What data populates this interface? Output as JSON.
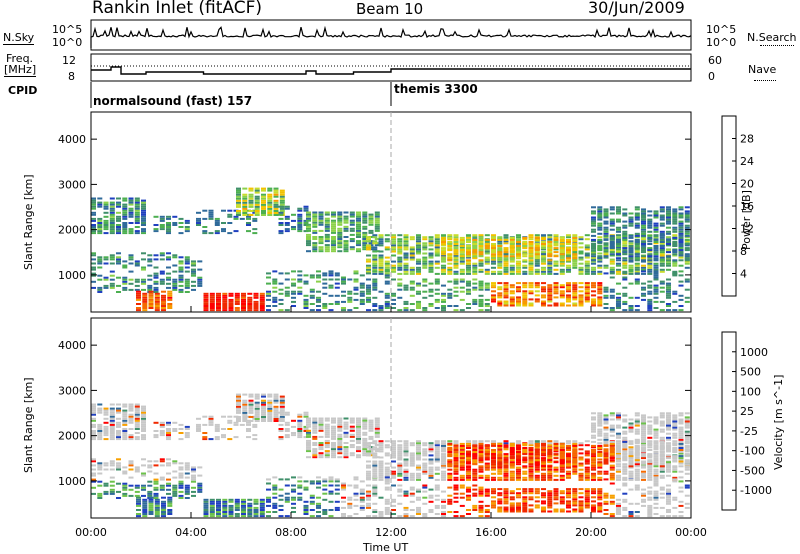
{
  "header": {
    "station": "Rankin Inlet (fitACF)",
    "beam": "Beam 10",
    "date": "30/Jun/2009"
  },
  "nsky_panel": {
    "left_label": "N.Sky",
    "left_tick_top": "10^5",
    "left_tick_bottom": "10^0",
    "right_tick_top": "10^5",
    "right_tick_bottom": "10^0",
    "right_label": "N.Search"
  },
  "freq_panel": {
    "left_label_line1": "Freq.",
    "left_label_line2": "[MHz]",
    "left_tick_top": "12",
    "left_tick_bottom": "8",
    "right_tick_top": "60",
    "right_tick_bottom": "0",
    "right_label": "Nave"
  },
  "cpid_panel": {
    "label": "CPID",
    "program1": "normalsound (fast) 157",
    "program2": "themis 3300"
  },
  "colors": {
    "power_scale": [
      "#0000ff",
      "#1f3fbf",
      "#2f6a9a",
      "#3f8f6a",
      "#4caf50",
      "#8cd14a",
      "#c8dc2c",
      "#f2c200",
      "#f79a00",
      "#f56a00",
      "#f02800",
      "#ff0000"
    ],
    "velocity_scale": [
      "#1f3fbf",
      "#2f6a9a",
      "#3f8f6a",
      "#6cc24a",
      "#c8c8c8",
      "#c8c8c8",
      "#f7a000",
      "#f56a00",
      "#f02800",
      "#ff0000"
    ]
  },
  "chart_data": [
    {
      "type": "heatmap",
      "panel": "power",
      "ylabel": "Slant Range [km]",
      "ylim": [
        180,
        4600
      ],
      "yticks": [
        "1000",
        "2000",
        "3000",
        "4000"
      ],
      "xlim": [
        0,
        24
      ],
      "colorbar_label": "Power [dB]",
      "colorbar_ticks": [
        "4",
        "8",
        "12",
        "16",
        "20",
        "24",
        "28"
      ],
      "colorbar_range": [
        0,
        32
      ]
    },
    {
      "type": "heatmap",
      "panel": "velocity",
      "ylabel": "Slant Range [km]",
      "ylim": [
        180,
        4600
      ],
      "yticks": [
        "1000",
        "2000",
        "3000",
        "4000"
      ],
      "xlim": [
        0,
        24
      ],
      "xlabel": "Time UT",
      "xticks": [
        "00:00",
        "04:00",
        "08:00",
        "12:00",
        "16:00",
        "20:00",
        "00:00"
      ],
      "colorbar_label": "Velocity [m s^-1]",
      "colorbar_ticks": [
        "1000",
        "500",
        "100",
        "25",
        "-25",
        "-100",
        "-500",
        "-1000"
      ]
    }
  ]
}
